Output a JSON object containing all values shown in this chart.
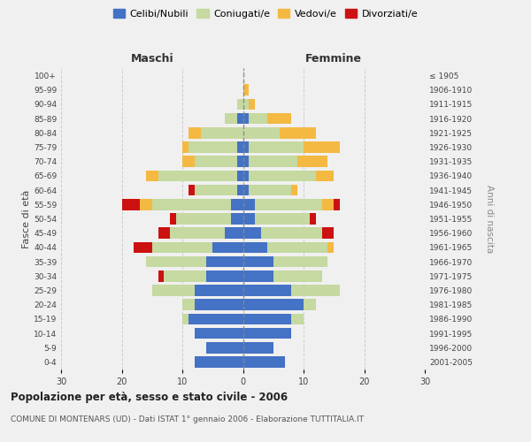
{
  "age_groups": [
    "0-4",
    "5-9",
    "10-14",
    "15-19",
    "20-24",
    "25-29",
    "30-34",
    "35-39",
    "40-44",
    "45-49",
    "50-54",
    "55-59",
    "60-64",
    "65-69",
    "70-74",
    "75-79",
    "80-84",
    "85-89",
    "90-94",
    "95-99",
    "100+"
  ],
  "birth_years": [
    "2001-2005",
    "1996-2000",
    "1991-1995",
    "1986-1990",
    "1981-1985",
    "1976-1980",
    "1971-1975",
    "1966-1970",
    "1961-1965",
    "1956-1960",
    "1951-1955",
    "1946-1950",
    "1941-1945",
    "1936-1940",
    "1931-1935",
    "1926-1930",
    "1921-1925",
    "1916-1920",
    "1911-1915",
    "1906-1910",
    "≤ 1905"
  ],
  "male": {
    "celibi": [
      8,
      6,
      8,
      9,
      8,
      8,
      6,
      6,
      5,
      3,
      2,
      2,
      1,
      1,
      1,
      1,
      0,
      1,
      0,
      0,
      0
    ],
    "coniugati": [
      0,
      0,
      0,
      1,
      2,
      7,
      7,
      10,
      10,
      9,
      9,
      13,
      7,
      13,
      7,
      8,
      7,
      2,
      1,
      0,
      0
    ],
    "vedovi": [
      0,
      0,
      0,
      0,
      0,
      0,
      0,
      0,
      0,
      0,
      0,
      2,
      0,
      2,
      2,
      1,
      2,
      0,
      0,
      0,
      0
    ],
    "divorziati": [
      0,
      0,
      0,
      0,
      0,
      0,
      1,
      0,
      3,
      2,
      1,
      3,
      1,
      0,
      0,
      0,
      0,
      0,
      0,
      0,
      0
    ]
  },
  "female": {
    "nubili": [
      7,
      5,
      8,
      8,
      10,
      8,
      5,
      5,
      4,
      3,
      2,
      2,
      1,
      1,
      1,
      1,
      0,
      1,
      0,
      0,
      0
    ],
    "coniugate": [
      0,
      0,
      0,
      2,
      2,
      8,
      8,
      9,
      10,
      10,
      9,
      11,
      7,
      11,
      8,
      9,
      6,
      3,
      1,
      0,
      0
    ],
    "vedove": [
      0,
      0,
      0,
      0,
      0,
      0,
      0,
      0,
      1,
      0,
      0,
      2,
      1,
      3,
      5,
      6,
      6,
      4,
      1,
      1,
      0
    ],
    "divorziate": [
      0,
      0,
      0,
      0,
      0,
      0,
      0,
      0,
      0,
      2,
      1,
      1,
      0,
      0,
      0,
      0,
      0,
      0,
      0,
      0,
      0
    ]
  },
  "colors": {
    "celibi_nubili": "#4472C4",
    "coniugati_e": "#C5D9A0",
    "vedovi_e": "#F4B942",
    "divorziati_e": "#CC1111"
  },
  "legend_labels": [
    "Celibi/Nubili",
    "Coniugati/e",
    "Vedovi/e",
    "Divorziati/e"
  ],
  "title": "Popolazione per età, sesso e stato civile - 2006",
  "subtitle": "COMUNE DI MONTENARS (UD) - Dati ISTAT 1° gennaio 2006 - Elaborazione TUTTITALIA.IT",
  "xlabel_left": "Maschi",
  "xlabel_right": "Femmine",
  "ylabel": "Fasce di età",
  "ylabel_right": "Anni di nascita",
  "xlim": 30,
  "bg_color": "#f0f0f0",
  "grid_color": "#cccccc"
}
